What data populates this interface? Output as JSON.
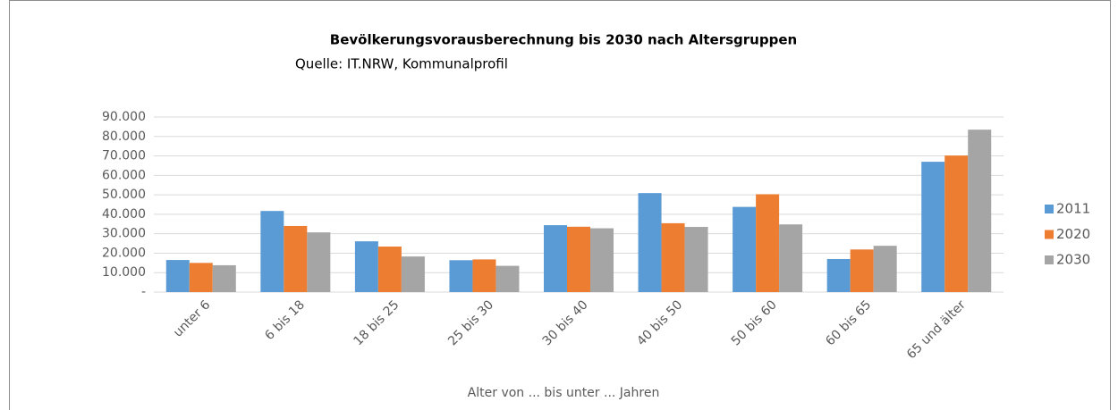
{
  "chart_data": {
    "type": "bar",
    "title": "Bevölkerungsvorausberechnung bis 2030 nach Altersgruppen",
    "subtitle": "Quelle: IT.NRW, Kommunalprofil",
    "x_label": "Alter von ... bis unter ... Jahren",
    "categories": [
      "unter 6",
      "6 bis 18",
      "18 bis 25",
      "25 bis 30",
      "30 bis 40",
      "40 bis 50",
      "50 bis 60",
      "60 bis 65",
      "65 und älter"
    ],
    "series": [
      {
        "name": "2011",
        "color": "#5b9bd5",
        "values": [
          16500,
          41700,
          26100,
          16400,
          34400,
          50900,
          43800,
          17000,
          67000
        ]
      },
      {
        "name": "2020",
        "color": "#ed7d31",
        "values": [
          15000,
          34000,
          23400,
          16800,
          33600,
          35400,
          50300,
          21900,
          70200
        ]
      },
      {
        "name": "2030",
        "color": "#a5a5a5",
        "values": [
          13800,
          30700,
          18300,
          13500,
          32800,
          33500,
          34800,
          23800,
          83500
        ]
      }
    ],
    "ylim": [
      0,
      90000
    ],
    "yticks": [
      {
        "value": 0,
        "label": "-"
      },
      {
        "value": 10000,
        "label": "10.000"
      },
      {
        "value": 20000,
        "label": "20.000"
      },
      {
        "value": 30000,
        "label": "30.000"
      },
      {
        "value": 40000,
        "label": "40.000"
      },
      {
        "value": 50000,
        "label": "50.000"
      },
      {
        "value": 60000,
        "label": "60.000"
      },
      {
        "value": 70000,
        "label": "70.000"
      },
      {
        "value": 80000,
        "label": "80.000"
      },
      {
        "value": 90000,
        "label": "90.000"
      }
    ],
    "grid": true,
    "legend": "right"
  }
}
